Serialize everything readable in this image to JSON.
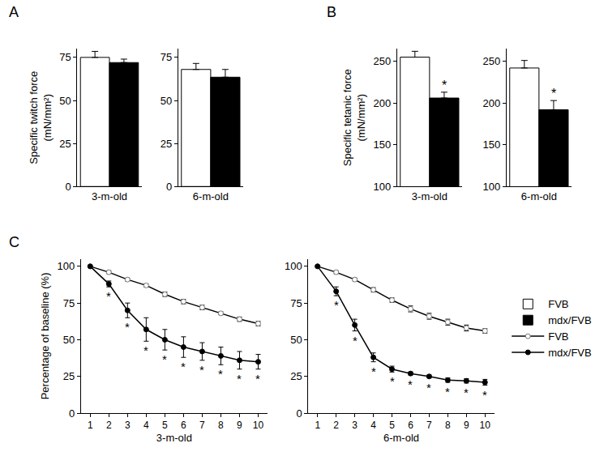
{
  "chart_data": [
    {
      "type": "bar",
      "panel_label": "A",
      "ylabel": "Specific twitch force (mN/mm²)",
      "categories": [
        "3-m-old"
      ],
      "series": [
        {
          "name": "FVB",
          "color": "#ffffff",
          "values": [
            75
          ],
          "errors": [
            3.5
          ]
        },
        {
          "name": "mdx/FVB",
          "color": "#000000",
          "values": [
            72
          ],
          "errors": [
            2
          ]
        }
      ],
      "ylim": [
        0,
        80
      ],
      "yticks": [
        0,
        25,
        50,
        75
      ],
      "legend": "right"
    },
    {
      "type": "bar",
      "categories": [
        "6-m-old"
      ],
      "series": [
        {
          "name": "FVB",
          "color": "#ffffff",
          "values": [
            68
          ],
          "errors": [
            3.5
          ]
        },
        {
          "name": "mdx/FVB",
          "color": "#000000",
          "values": [
            63.5
          ],
          "errors": [
            4.5
          ]
        }
      ],
      "ylim": [
        0,
        80
      ],
      "yticks": [
        0,
        25,
        50,
        75
      ]
    },
    {
      "type": "bar",
      "panel_label": "B",
      "ylabel": "Specific tetanic force (mN/mm²)",
      "categories": [
        "3-m-old"
      ],
      "series": [
        {
          "name": "FVB",
          "color": "#ffffff",
          "values": [
            255
          ],
          "errors": [
            7
          ]
        },
        {
          "name": "mdx/FVB",
          "color": "#000000",
          "values": [
            206
          ],
          "errors": [
            7
          ],
          "annotation": "*"
        }
      ],
      "ylim": [
        100,
        265
      ],
      "yticks": [
        100,
        150,
        200,
        250
      ]
    },
    {
      "type": "bar",
      "categories": [
        "6-m-old"
      ],
      "series": [
        {
          "name": "FVB",
          "color": "#ffffff",
          "values": [
            242
          ],
          "errors": [
            9
          ]
        },
        {
          "name": "mdx/FVB",
          "color": "#000000",
          "values": [
            192
          ],
          "errors": [
            11
          ],
          "annotation": "*"
        }
      ],
      "ylim": [
        100,
        265
      ],
      "yticks": [
        100,
        150,
        200,
        250
      ]
    },
    {
      "type": "line",
      "panel_label": "C",
      "ylabel": "Percentage of baseline (%)",
      "xlabel": "3-m-old",
      "x": [
        1,
        2,
        3,
        4,
        5,
        6,
        7,
        8,
        9,
        10
      ],
      "series": [
        {
          "name": "FVB",
          "color": "#000000",
          "marker": "open circle",
          "values": [
            100,
            96,
            91,
            87,
            81,
            76,
            72,
            68,
            64,
            61
          ],
          "errors": [
            0,
            1,
            1,
            1,
            1.5,
            1.5,
            1.5,
            1,
            1.5,
            1.5
          ]
        },
        {
          "name": "mdx/FVB",
          "color": "#000000",
          "marker": "filled circle",
          "values": [
            100,
            88,
            70,
            57,
            50,
            45,
            42,
            39,
            36,
            35
          ],
          "errors": [
            0,
            2,
            5,
            8,
            7,
            7,
            6,
            6,
            6,
            5
          ],
          "annotation": "*",
          "significant_x": [
            2,
            3,
            4,
            5,
            6,
            7,
            8,
            9,
            10
          ]
        }
      ],
      "xlim": [
        0.5,
        10.5
      ],
      "xticks": [
        1,
        2,
        3,
        4,
        5,
        6,
        7,
        8,
        9,
        10
      ],
      "ylim": [
        0,
        105
      ],
      "yticks": [
        0,
        25,
        50,
        75,
        100
      ],
      "legend": "right"
    },
    {
      "type": "line",
      "xlabel": "6-m-old",
      "x": [
        1,
        2,
        3,
        4,
        5,
        6,
        7,
        8,
        9,
        10
      ],
      "series": [
        {
          "name": "FVB",
          "color": "#000000",
          "marker": "open circle",
          "values": [
            100,
            96,
            91,
            84,
            77,
            71,
            66,
            62,
            58,
            56
          ],
          "errors": [
            0,
            1,
            1,
            1.5,
            1.5,
            2,
            2,
            2,
            2,
            1.5
          ]
        },
        {
          "name": "mdx/FVB",
          "color": "#000000",
          "marker": "filled circle",
          "values": [
            100,
            83,
            60,
            38,
            30,
            27,
            25,
            22.5,
            22,
            21
          ],
          "errors": [
            0,
            3,
            4,
            3,
            2,
            1,
            1,
            1.5,
            1.5,
            2
          ],
          "annotation": "*",
          "significant_x": [
            2,
            3,
            4,
            5,
            6,
            7,
            8,
            9,
            10
          ]
        }
      ],
      "xlim": [
        0.5,
        10.5
      ],
      "xticks": [
        1,
        2,
        3,
        4,
        5,
        6,
        7,
        8,
        9,
        10
      ],
      "ylim": [
        0,
        105
      ],
      "yticks": [
        0,
        25,
        50,
        75,
        100
      ]
    }
  ]
}
